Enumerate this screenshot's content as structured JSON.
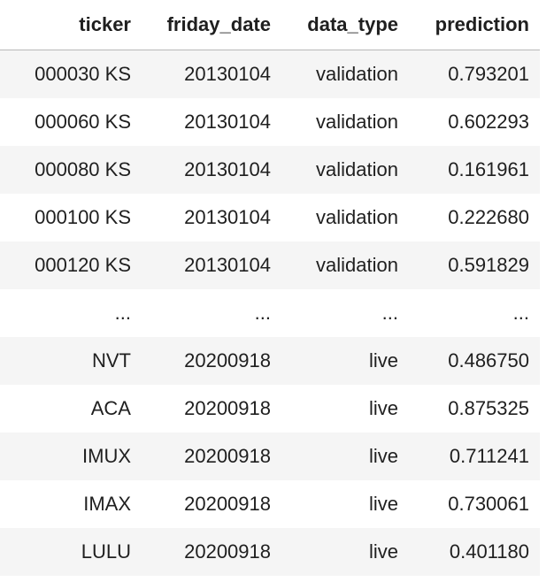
{
  "table": {
    "columns": [
      "ticker",
      "friday_date",
      "data_type",
      "prediction"
    ],
    "rows": [
      [
        "000030 KS",
        "20130104",
        "validation",
        "0.793201"
      ],
      [
        "000060 KS",
        "20130104",
        "validation",
        "0.602293"
      ],
      [
        "000080 KS",
        "20130104",
        "validation",
        "0.161961"
      ],
      [
        "000100 KS",
        "20130104",
        "validation",
        "0.222680"
      ],
      [
        "000120 KS",
        "20130104",
        "validation",
        "0.591829"
      ],
      [
        "...",
        "...",
        "...",
        "..."
      ],
      [
        "NVT",
        "20200918",
        "live",
        "0.486750"
      ],
      [
        "ACA",
        "20200918",
        "live",
        "0.875325"
      ],
      [
        "IMUX",
        "20200918",
        "live",
        "0.711241"
      ],
      [
        "IMAX",
        "20200918",
        "live",
        "0.730061"
      ],
      [
        "LULU",
        "20200918",
        "live",
        "0.401180"
      ]
    ]
  }
}
